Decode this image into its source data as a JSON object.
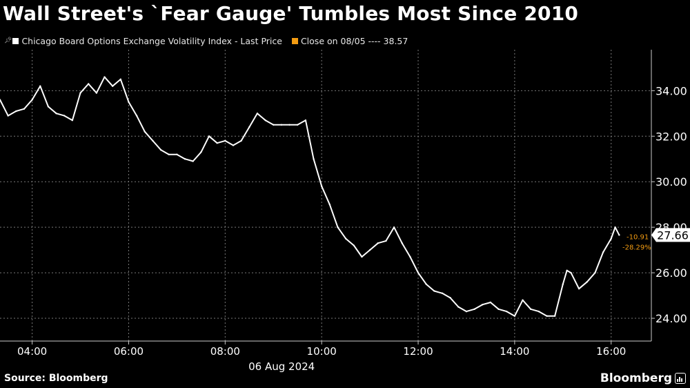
{
  "title": "Wall Street's `Fear Gauge' Tumbles Most Since 2010",
  "legend": {
    "series_label": "Chicago Board Options Exchange Volatility Index - Last Price",
    "close_label": "Close on 08/05 ---- 38.57"
  },
  "source": "Source: Bloomberg",
  "brand": "Bloomberg",
  "colors": {
    "background": "#000000",
    "line": "#ffffff",
    "accent": "#f39c12",
    "grid": "#7a7a7a"
  },
  "chart_data": {
    "type": "line",
    "title": "Wall Street's `Fear Gauge' Tumbles Most Since 2010",
    "date_label": "06 Aug 2024",
    "xlabel": "",
    "ylabel": "",
    "xlim": [
      "03:20",
      "16:50"
    ],
    "ylim": [
      23.0,
      35.8
    ],
    "x_ticks": [
      "04:00",
      "06:00",
      "08:00",
      "10:00",
      "12:00",
      "14:00",
      "16:00"
    ],
    "y_ticks": [
      "24.00",
      "26.00",
      "28.00",
      "30.00",
      "32.00",
      "34.00"
    ],
    "grid": true,
    "series": [
      {
        "name": "Chicago Board Options Exchange Volatility Index - Last Price",
        "x": [
          "03:20",
          "03:30",
          "03:40",
          "03:50",
          "04:00",
          "04:10",
          "04:20",
          "04:30",
          "04:40",
          "04:50",
          "05:00",
          "05:10",
          "05:20",
          "05:30",
          "05:40",
          "05:50",
          "06:00",
          "06:10",
          "06:20",
          "06:30",
          "06:40",
          "06:50",
          "07:00",
          "07:10",
          "07:20",
          "07:30",
          "07:40",
          "07:50",
          "08:00",
          "08:10",
          "08:20",
          "08:30",
          "08:40",
          "08:50",
          "09:00",
          "09:10",
          "09:20",
          "09:30",
          "09:40",
          "09:50",
          "10:00",
          "10:10",
          "10:20",
          "10:30",
          "10:40",
          "10:50",
          "11:00",
          "11:10",
          "11:20",
          "11:30",
          "11:40",
          "11:50",
          "12:00",
          "12:10",
          "12:20",
          "12:30",
          "12:40",
          "12:50",
          "13:00",
          "13:10",
          "13:20",
          "13:30",
          "13:40",
          "13:50",
          "14:00",
          "14:10",
          "14:20",
          "14:30",
          "14:40",
          "14:50",
          "15:00",
          "15:05",
          "15:10",
          "15:20",
          "15:30",
          "15:40",
          "15:50",
          "16:00",
          "16:05",
          "16:10"
        ],
        "values": [
          33.6,
          32.9,
          33.1,
          33.2,
          33.6,
          34.2,
          33.3,
          33.0,
          32.9,
          32.7,
          33.9,
          34.3,
          33.9,
          34.6,
          34.2,
          34.5,
          33.5,
          32.9,
          32.2,
          31.8,
          31.4,
          31.2,
          31.2,
          31.0,
          30.9,
          31.3,
          32.0,
          31.7,
          31.8,
          31.6,
          31.8,
          32.4,
          33.0,
          32.7,
          32.5,
          32.5,
          32.5,
          32.5,
          32.7,
          31.0,
          29.8,
          29.0,
          28.0,
          27.5,
          27.2,
          26.7,
          27.0,
          27.3,
          27.4,
          28.0,
          27.3,
          26.7,
          26.0,
          25.5,
          25.2,
          25.1,
          24.9,
          24.5,
          24.3,
          24.4,
          24.6,
          24.7,
          24.4,
          24.3,
          24.1,
          24.8,
          24.4,
          24.3,
          24.1,
          24.1,
          25.5,
          26.1,
          26.0,
          25.3,
          25.6,
          26.0,
          26.9,
          27.5,
          28.0,
          27.66
        ]
      }
    ],
    "last_value": "27.66",
    "change_abs": "-10.91",
    "change_pct": "-28.29%"
  }
}
